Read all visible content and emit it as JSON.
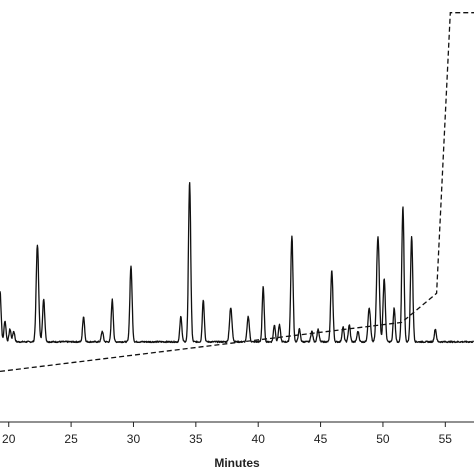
{
  "chart_data": {
    "type": "line",
    "title": "",
    "xlabel": "Minutes",
    "ylabel": "",
    "xlim": [
      19.3,
      57.3
    ],
    "ylim": [
      0,
      100
    ],
    "grid": false,
    "legend": "none",
    "x_ticks": [
      {
        "value": 20,
        "label": "20"
      },
      {
        "value": 25,
        "label": "25"
      },
      {
        "value": 30,
        "label": "30"
      },
      {
        "value": 35,
        "label": "35"
      },
      {
        "value": 40,
        "label": "40"
      },
      {
        "value": 45,
        "label": "45"
      },
      {
        "value": 50,
        "label": "50"
      },
      {
        "value": 55,
        "label": "55"
      }
    ],
    "series": [
      {
        "style": "solid",
        "color": "#111111",
        "baseline": 19,
        "noise": 0.35,
        "peaks": [
          {
            "x": 19.3,
            "h": 12,
            "w": 0.09
          },
          {
            "x": 19.7,
            "h": 5,
            "w": 0.08
          },
          {
            "x": 20.1,
            "h": 3,
            "w": 0.08
          },
          {
            "x": 20.4,
            "h": 2.5,
            "w": 0.08
          },
          {
            "x": 22.3,
            "h": 23,
            "w": 0.1
          },
          {
            "x": 22.8,
            "h": 10,
            "w": 0.09
          },
          {
            "x": 26.0,
            "h": 6,
            "w": 0.08
          },
          {
            "x": 27.5,
            "h": 2.5,
            "w": 0.08
          },
          {
            "x": 28.3,
            "h": 10,
            "w": 0.08
          },
          {
            "x": 29.8,
            "h": 18,
            "w": 0.09
          },
          {
            "x": 33.8,
            "h": 6,
            "w": 0.08
          },
          {
            "x": 34.5,
            "h": 38,
            "w": 0.09
          },
          {
            "x": 35.6,
            "h": 10,
            "w": 0.08
          },
          {
            "x": 37.8,
            "h": 8,
            "w": 0.1
          },
          {
            "x": 39.2,
            "h": 6,
            "w": 0.09
          },
          {
            "x": 40.4,
            "h": 13,
            "w": 0.08
          },
          {
            "x": 41.3,
            "h": 4,
            "w": 0.08
          },
          {
            "x": 41.7,
            "h": 4,
            "w": 0.08
          },
          {
            "x": 42.7,
            "h": 25,
            "w": 0.09
          },
          {
            "x": 43.3,
            "h": 3,
            "w": 0.08
          },
          {
            "x": 44.3,
            "h": 2.5,
            "w": 0.08
          },
          {
            "x": 44.8,
            "h": 3,
            "w": 0.08
          },
          {
            "x": 45.9,
            "h": 17,
            "w": 0.09
          },
          {
            "x": 46.8,
            "h": 3.5,
            "w": 0.08
          },
          {
            "x": 47.3,
            "h": 4,
            "w": 0.08
          },
          {
            "x": 48.0,
            "h": 2.5,
            "w": 0.08
          },
          {
            "x": 48.9,
            "h": 8,
            "w": 0.1
          },
          {
            "x": 49.6,
            "h": 25,
            "w": 0.11
          },
          {
            "x": 50.1,
            "h": 15,
            "w": 0.09
          },
          {
            "x": 50.9,
            "h": 8,
            "w": 0.08
          },
          {
            "x": 51.6,
            "h": 32,
            "w": 0.09
          },
          {
            "x": 52.3,
            "h": 25,
            "w": 0.09
          },
          {
            "x": 54.2,
            "h": 3,
            "w": 0.08
          }
        ]
      },
      {
        "style": "dashed",
        "color": "#111111",
        "x": [
          19.3,
          51.5,
          54.3,
          55.4,
          57.3
        ],
        "y": [
          12,
          23.6,
          30.5,
          97,
          97
        ]
      }
    ]
  }
}
